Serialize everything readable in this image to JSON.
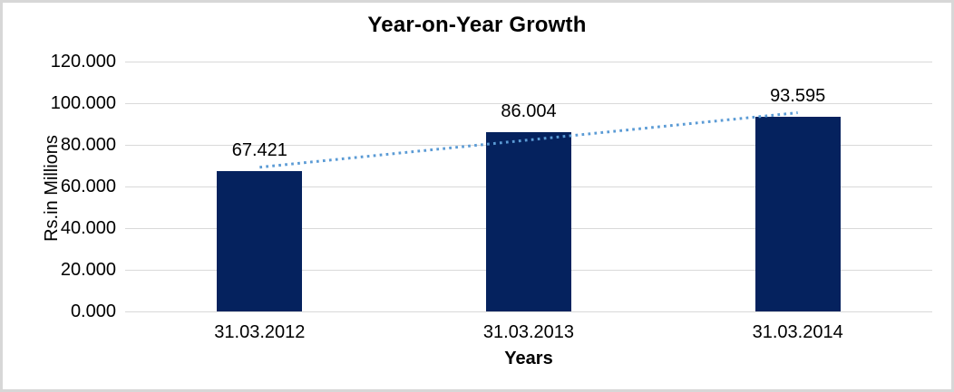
{
  "chart_data": {
    "type": "bar",
    "title": "Year-on-Year Growth",
    "xlabel": "Years",
    "ylabel": "Rs.in Millions",
    "categories": [
      "31.03.2012",
      "31.03.2013",
      "31.03.2014"
    ],
    "values": [
      67.421,
      86.004,
      93.595
    ],
    "data_labels": [
      "67.421",
      "86.004",
      "93.595"
    ],
    "ytick_labels": [
      "120.000",
      "100.000",
      "80.000",
      "60.000",
      "40.000",
      "20.000",
      "0.000"
    ],
    "ylim": [
      0,
      120
    ],
    "ytick_step": 20,
    "grid": true,
    "legend_position": "none",
    "bar_color": "#05225e",
    "trendline": {
      "type": "linear",
      "style": "dotted",
      "color": "#5b9bd5"
    },
    "gridline_color": "#d9d9d9",
    "text_color": "#000000",
    "frame_border_color": "#d7d7d7"
  }
}
